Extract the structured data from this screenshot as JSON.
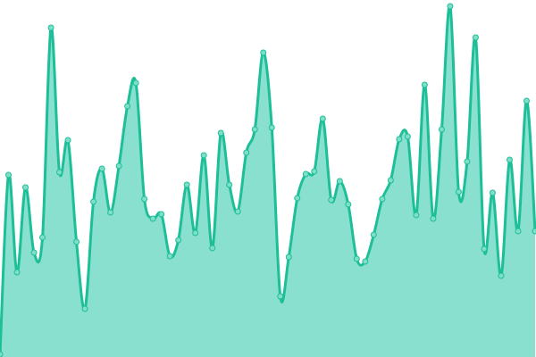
{
  "chart_data": {
    "type": "area",
    "title": "",
    "xlabel": "",
    "ylabel": "",
    "grid": false,
    "axes_visible": false,
    "ylim": [
      0,
      400
    ],
    "smoothing": "cardinal-spline",
    "markers": true,
    "colors": {
      "line": "#1dbf98",
      "fill": "#8ae0cf",
      "marker_fill": "#7fdec7",
      "marker_stroke": "#1dbf98"
    },
    "x": [
      0,
      1,
      2,
      3,
      4,
      5,
      6,
      7,
      8,
      9,
      10,
      11,
      12,
      13,
      14,
      15,
      16,
      17,
      18,
      19,
      20,
      21,
      22,
      23,
      24,
      25,
      26,
      27,
      28,
      29,
      30,
      31,
      32,
      33,
      34,
      35,
      36,
      37,
      38,
      39,
      40,
      41,
      42,
      43,
      44,
      45,
      46,
      47,
      48,
      49,
      50,
      51,
      52,
      53,
      54,
      55,
      56,
      57,
      58,
      59,
      60,
      61,
      62,
      63
    ],
    "values": [
      3,
      204,
      95,
      190,
      117,
      134,
      369,
      207,
      243,
      129,
      54,
      174,
      211,
      162,
      214,
      281,
      307,
      177,
      155,
      160,
      113,
      131,
      193,
      139,
      226,
      122,
      251,
      193,
      163,
      229,
      255,
      341,
      257,
      68,
      112,
      178,
      205,
      208,
      267,
      176,
      197,
      171,
      110,
      107,
      137,
      177,
      198,
      244,
      247,
      159,
      305,
      155,
      255,
      393,
      185,
      219,
      358,
      121,
      184,
      91,
      221,
      141,
      287,
      141
    ]
  }
}
